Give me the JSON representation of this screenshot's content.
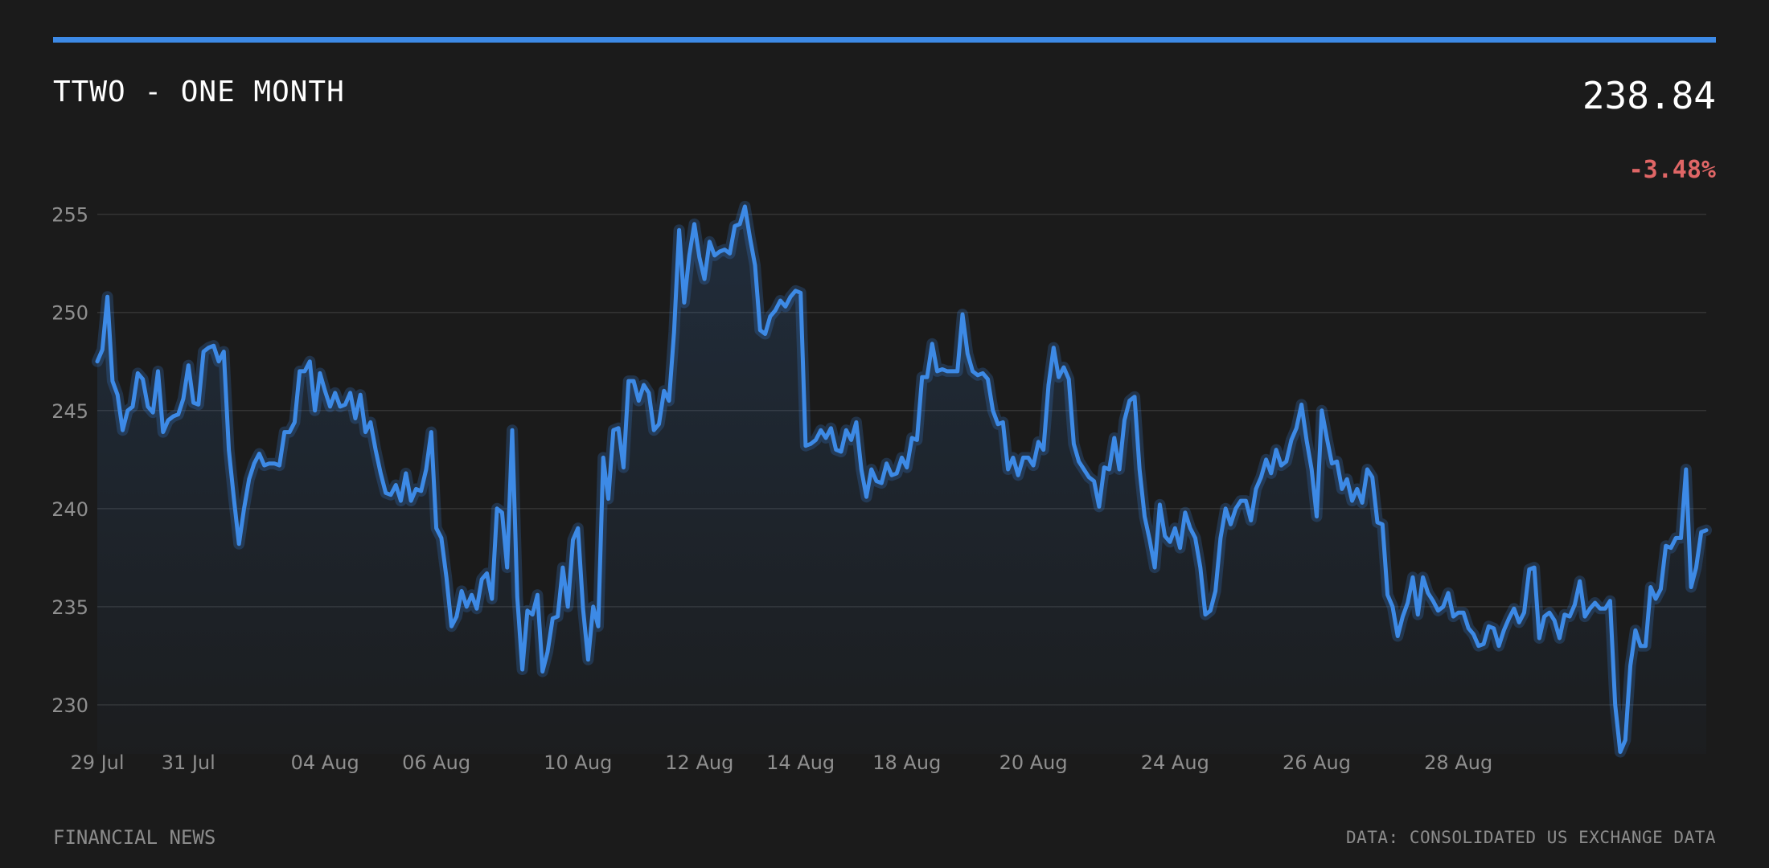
{
  "header": {
    "title": "TTWO - ONE MONTH",
    "price": "238.84",
    "change": "-3.48%"
  },
  "footer": {
    "left": "FINANCIAL NEWS",
    "right": "DATA: CONSOLIDATED US EXCHANGE DATA"
  },
  "colors": {
    "background": "#1b1b1b",
    "accent": "#3d8ae6",
    "line": "#3d8ae6",
    "negative": "#e06666",
    "grid": "#343434",
    "muted_text": "#8f8f8f"
  },
  "chart_data": {
    "type": "line",
    "title": "",
    "xlabel": "",
    "ylabel": "",
    "ylim": [
      227.5,
      256.5
    ],
    "yticks": [
      230,
      235,
      240,
      245,
      250,
      255
    ],
    "grid": true,
    "xticks": [
      {
        "label": "29 Jul",
        "index": 0
      },
      {
        "label": "31 Jul",
        "index": 18
      },
      {
        "label": "04 Aug",
        "index": 45
      },
      {
        "label": "06 Aug",
        "index": 67
      },
      {
        "label": "10 Aug",
        "index": 95
      },
      {
        "label": "12 Aug",
        "index": 119
      },
      {
        "label": "14 Aug",
        "index": 139
      },
      {
        "label": "18 Aug",
        "index": 160
      },
      {
        "label": "20 Aug",
        "index": 185
      },
      {
        "label": "24 Aug",
        "index": 213
      },
      {
        "label": "26 Aug",
        "index": 241
      },
      {
        "label": "28 Aug",
        "index": 269
      }
    ],
    "series": [
      {
        "name": "",
        "values": [
          247.5,
          248.1,
          250.8,
          246.5,
          245.8,
          244.0,
          245.0,
          245.2,
          246.9,
          246.6,
          245.2,
          244.9,
          247.0,
          243.9,
          244.5,
          244.7,
          244.8,
          245.6,
          247.3,
          245.4,
          245.3,
          248.0,
          248.2,
          248.3,
          247.5,
          248.0,
          243.0,
          240.5,
          238.2,
          240.0,
          241.5,
          242.3,
          242.8,
          242.2,
          242.3,
          242.3,
          242.2,
          243.9,
          243.9,
          244.4,
          247.0,
          247.0,
          247.5,
          245.0,
          246.9,
          246.0,
          245.2,
          245.9,
          245.2,
          245.3,
          245.9,
          244.6,
          245.8,
          243.9,
          244.4,
          243.0,
          241.8,
          240.8,
          240.7,
          241.2,
          240.4,
          241.8,
          240.4,
          241.0,
          240.9,
          242.0,
          243.9,
          239.0,
          238.5,
          236.5,
          234.0,
          234.5,
          235.8,
          235.0,
          235.6,
          234.9,
          236.4,
          236.7,
          235.4,
          240.0,
          239.8,
          237.0,
          244.0,
          235.5,
          231.8,
          234.8,
          234.6,
          235.6,
          231.7,
          232.7,
          234.4,
          234.5,
          237.0,
          235.0,
          238.4,
          239.0,
          234.9,
          232.3,
          235.0,
          234.0,
          242.6,
          240.5,
          244.0,
          244.1,
          242.1,
          246.5,
          246.5,
          245.5,
          246.3,
          245.9,
          244.0,
          244.3,
          246.0,
          245.5,
          249.0,
          254.2,
          250.5,
          252.9,
          254.5,
          252.8,
          251.7,
          253.6,
          252.9,
          253.1,
          253.2,
          253.0,
          254.4,
          254.5,
          255.4,
          253.8,
          252.4,
          249.1,
          248.9,
          249.8,
          250.1,
          250.6,
          250.3,
          250.8,
          251.1,
          251.0,
          243.2,
          243.3,
          243.5,
          244.0,
          243.6,
          244.1,
          243.0,
          242.9,
          244.0,
          243.5,
          244.4,
          242.0,
          240.6,
          242.0,
          241.4,
          241.3,
          242.3,
          241.7,
          241.8,
          242.6,
          242.1,
          243.6,
          243.5,
          246.7,
          246.7,
          248.4,
          247.0,
          247.1,
          247.0,
          247.0,
          247.0,
          249.9,
          247.9,
          247.0,
          246.8,
          246.9,
          246.6,
          245.0,
          244.3,
          244.4,
          242.0,
          242.6,
          241.7,
          242.6,
          242.6,
          242.2,
          243.4,
          243.0,
          246.3,
          248.2,
          246.7,
          247.2,
          246.6,
          243.3,
          242.4,
          242.0,
          241.6,
          241.4,
          240.1,
          242.1,
          242.0,
          243.6,
          242.0,
          244.5,
          245.5,
          245.7,
          242.0,
          239.6,
          238.4,
          237.0,
          240.2,
          238.6,
          238.3,
          239.0,
          238.0,
          239.8,
          239.0,
          238.5,
          237.0,
          234.6,
          234.8,
          235.8,
          238.5,
          240.0,
          239.2,
          240.0,
          240.4,
          240.4,
          239.4,
          241.0,
          241.6,
          242.5,
          241.8,
          243.0,
          242.2,
          242.4,
          243.5,
          244.1,
          245.3,
          243.5,
          242.0,
          239.6,
          245.0,
          243.6,
          242.3,
          242.4,
          241.0,
          241.5,
          240.4,
          241.0,
          240.3,
          242.0,
          241.6,
          239.3,
          239.2,
          235.6,
          235.0,
          233.5,
          234.5,
          235.2,
          236.5,
          234.6,
          236.5,
          235.7,
          235.3,
          234.8,
          235.0,
          235.7,
          234.5,
          234.7,
          234.7,
          233.9,
          233.6,
          233.0,
          233.1,
          234.0,
          233.9,
          233.0,
          233.8,
          234.4,
          234.9,
          234.2,
          234.7,
          236.9,
          237.0,
          233.4,
          234.5,
          234.7,
          234.3,
          233.4,
          234.6,
          234.5,
          235.1,
          236.3,
          234.5,
          234.9,
          235.2,
          234.9,
          234.9,
          235.3,
          230.0,
          227.6,
          228.2,
          232.0,
          233.8,
          233.0,
          233.0,
          236.0,
          235.4,
          235.9,
          238.1,
          238.0,
          238.5,
          238.5,
          242.0,
          236.0,
          237.0,
          238.8,
          238.9
        ]
      }
    ]
  }
}
